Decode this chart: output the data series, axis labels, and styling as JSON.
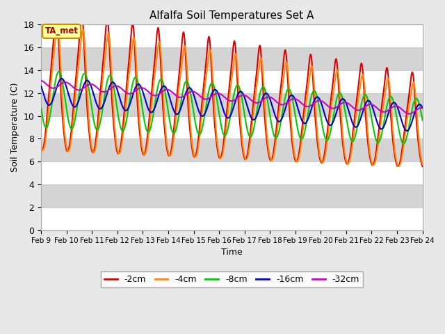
{
  "title": "Alfalfa Soil Temperatures Set A",
  "xlabel": "Time",
  "ylabel": "Soil Temperature (C)",
  "ylim": [
    0,
    18
  ],
  "yticks": [
    0,
    2,
    4,
    6,
    8,
    10,
    12,
    14,
    16,
    18
  ],
  "legend_labels": [
    "-2cm",
    "-4cm",
    "-8cm",
    "-16cm",
    "-32cm"
  ],
  "legend_colors": [
    "#dd0000",
    "#ff8800",
    "#00cc00",
    "#0000cc",
    "#cc00cc"
  ],
  "annotation_text": "TA_met",
  "annotation_bg": "#ffff99",
  "annotation_border": "#cc8800",
  "plot_bg": "#e8e8e8",
  "n_points": 721,
  "x_start": 9,
  "x_end": 24,
  "xtick_positions": [
    9,
    10,
    11,
    12,
    13,
    14,
    15,
    16,
    17,
    18,
    19,
    20,
    21,
    22,
    23,
    24
  ],
  "xtick_labels": [
    "Feb 9",
    "Feb 10",
    "Feb 11",
    "Feb 12",
    "Feb 13",
    "Feb 14",
    "Feb 15",
    "Feb 16",
    "Feb 17",
    "Feb 18",
    "Feb 19",
    "Feb 20",
    "Feb 21",
    "Feb 22",
    "Feb 23",
    "Feb 24"
  ],
  "band_colors": [
    "#ffffff",
    "#d4d4d4"
  ],
  "figsize": [
    6.4,
    4.8
  ],
  "dpi": 100
}
